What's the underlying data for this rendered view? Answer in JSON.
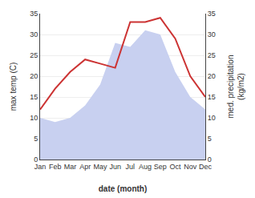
{
  "chart_data": {
    "type": "line",
    "categories": [
      "Jan",
      "Feb",
      "Mar",
      "Apr",
      "May",
      "Jun",
      "Jul",
      "Aug",
      "Sep",
      "Oct",
      "Nov",
      "Dec"
    ],
    "series": [
      {
        "type": "area",
        "color": "#c8d0f0",
        "values": [
          10,
          9,
          10,
          13,
          18,
          28,
          27,
          31,
          30,
          21,
          15,
          12
        ]
      },
      {
        "type": "line",
        "color": "#cc3333",
        "axis": "y2",
        "values": [
          12,
          17,
          21,
          24,
          23,
          22,
          33,
          33,
          34,
          29,
          20,
          15
        ]
      }
    ],
    "xlabel": "date (month)",
    "ylabel": "max temp (C)",
    "y2label": "med. precipitation\n(kg/m2)",
    "ylim": [
      0,
      35
    ],
    "yticks": [
      0,
      5,
      10,
      15,
      20,
      25,
      30,
      35
    ],
    "y2lim": [
      0,
      35
    ],
    "y2ticks": [
      0,
      5,
      10,
      15,
      20,
      25,
      30,
      35
    ],
    "grid": true
  }
}
